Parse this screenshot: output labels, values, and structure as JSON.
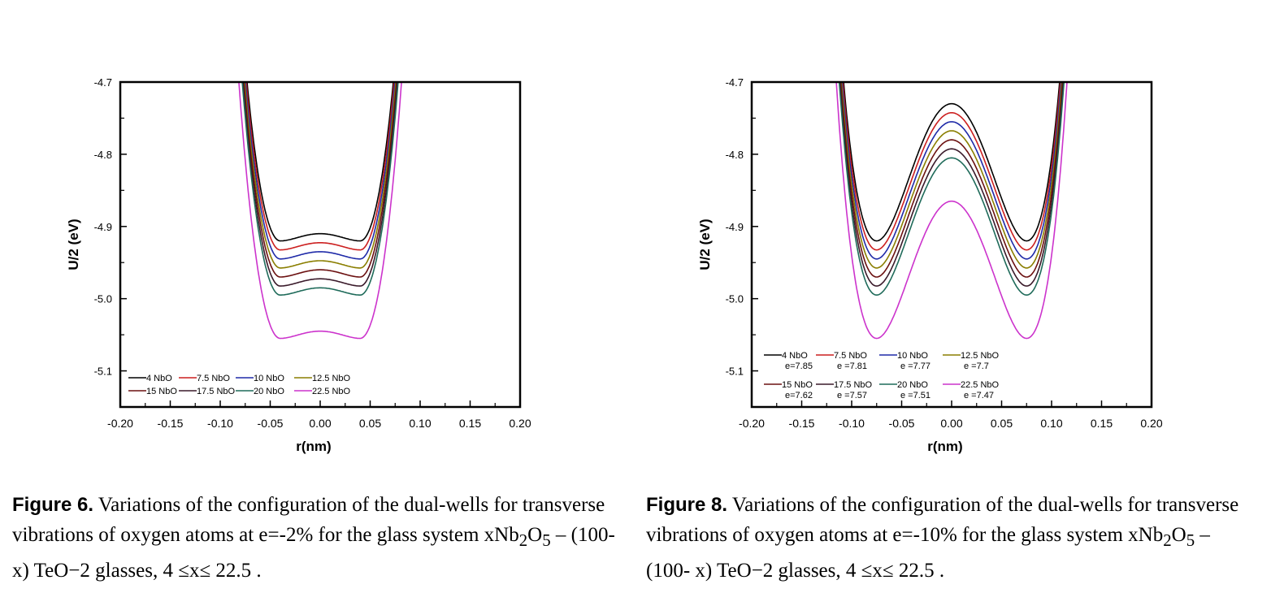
{
  "chart_data": [
    {
      "type": "line",
      "figure_label": "Figure 6.",
      "caption_main": "Variations of the configuration of the dual-wells for transverse vibrations of oxygen atoms at e=-2% for the glass system xNb",
      "caption_o": "O",
      "caption_tail": " – (100- x) TeO−2 glasses, 4 ≤x≤ 22.5 .",
      "caption_sub2": "2",
      "caption_sub5": "5",
      "xlabel": "r(nm)",
      "ylabel": "U/2 (eV)",
      "xlim": [
        -0.2,
        0.2
      ],
      "ylim": [
        -5.15,
        -4.7
      ],
      "xticks": [
        "-0.20",
        "-0.15",
        "-0.10",
        "-0.05",
        "0.00",
        "0.05",
        "0.10",
        "0.15",
        "0.20"
      ],
      "yticks": [
        "-4.7",
        "-4.8",
        "-4.9",
        "-5.0",
        "-5.1"
      ],
      "model": {
        "well_pos": 0.04,
        "barrier": 0.01,
        "steepness": 0.02
      },
      "series": [
        {
          "name": "4 NbO",
          "color": "#000000",
          "min": -4.92
        },
        {
          "name": "7.5 NbO",
          "color": "#cc1f1f",
          "min": -4.9325
        },
        {
          "name": "10 NbO",
          "color": "#1f2aa8",
          "min": -4.945
        },
        {
          "name": "12.5 NbO",
          "color": "#8a7e00",
          "min": -4.9575
        },
        {
          "name": "15 NbO",
          "color": "#6b1010",
          "min": -4.97
        },
        {
          "name": "17.5 NbO",
          "color": "#3a1a2a",
          "min": -4.9825
        },
        {
          "name": "20 NbO",
          "color": "#1f6b5a",
          "min": -4.995
        },
        {
          "name": "22.5 NbO",
          "color": "#cc33cc",
          "min": -5.055
        }
      ]
    },
    {
      "type": "line",
      "figure_label": "Figure 8.",
      "caption_main": "Variations of the configuration of the dual-wells for transverse vibrations of oxygen atoms at e=-10% for the glass system xNb",
      "caption_o": "O",
      "caption_tail": " – (100- x) TeO−2 glasses, 4 ≤x≤ 22.5 .",
      "caption_sub2": "2",
      "caption_sub5": "5",
      "xlabel": "r(nm)",
      "ylabel": "U/2 (eV)",
      "xlim": [
        -0.2,
        0.2
      ],
      "ylim": [
        -5.15,
        -4.7
      ],
      "xticks": [
        "-0.20",
        "-0.15",
        "-0.10",
        "-0.05",
        "0.00",
        "0.05",
        "0.10",
        "0.15",
        "0.20"
      ],
      "yticks": [
        "-4.7",
        "-4.8",
        "-4.9",
        "-5.0",
        "-5.1"
      ],
      "model": {
        "well_pos": 0.075,
        "barrier": 0.19,
        "steepness": 0.02
      },
      "series": [
        {
          "name": "4 NbO",
          "e_label": "e=7.85",
          "color": "#000000",
          "min": -4.92
        },
        {
          "name": "7.5 NbO",
          "e_label": "e =7.81",
          "color": "#cc1f1f",
          "min": -4.9325
        },
        {
          "name": "10 NbO",
          "e_label": "e =7.77",
          "color": "#1f2aa8",
          "min": -4.945
        },
        {
          "name": "12.5 NbO",
          "e_label": "e =7.7",
          "color": "#8a7e00",
          "min": -4.9575
        },
        {
          "name": "15 NbO",
          "e_label": "e=7.62",
          "color": "#6b1010",
          "min": -4.97
        },
        {
          "name": "17.5 NbO",
          "e_label": "e =7.57",
          "color": "#3a1a2a",
          "min": -4.9825
        },
        {
          "name": "20 NbO",
          "e_label": "e =7.51",
          "color": "#1f6b5a",
          "min": -4.995
        },
        {
          "name": "22.5 NbO",
          "e_label": "e =7.47",
          "color": "#cc33cc",
          "min": -5.055
        }
      ]
    }
  ]
}
